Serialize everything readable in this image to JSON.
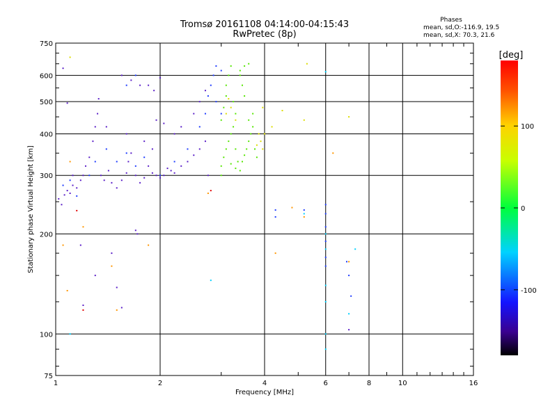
{
  "header": {
    "title": "Tromsø 20161108 04:14:00-04:15:43",
    "subtitle": "RwPretec (8p)"
  },
  "stats": {
    "title": "Phases",
    "line1": "mean, sd,O:-116.9, 19.5",
    "line2": "mean, sd,X:  70.3, 21.6"
  },
  "colorbar": {
    "label": "[deg]",
    "range": [
      -180,
      180
    ],
    "ticks": [
      "100",
      "0",
      "-100"
    ],
    "tick_values": [
      100,
      0,
      -100
    ]
  },
  "chart_data": {
    "type": "scatter",
    "xlabel": "Frequency [MHz]",
    "ylabel": "Stationary phase Virtual Height [km]",
    "xscale": "log2",
    "yscale": "log",
    "xlim": [
      1,
      16
    ],
    "ylim": [
      75,
      750
    ],
    "xticks": [
      1,
      2,
      4,
      6,
      8,
      10,
      16
    ],
    "xtick_labels": [
      "1",
      "2",
      "4",
      "6",
      "8",
      "10",
      "16"
    ],
    "yticks": [
      75,
      100,
      200,
      300,
      400,
      500,
      600,
      750
    ],
    "ytick_labels": [
      "75",
      "100",
      "200",
      "300",
      "400",
      "500",
      "600",
      "750"
    ],
    "grid": true,
    "series": [
      {
        "color": "#5a1ec8",
        "points": [
          [
            1.02,
            255
          ],
          [
            1.04,
            245
          ],
          [
            1.06,
            262
          ],
          [
            1.08,
            270
          ],
          [
            1.1,
            265
          ],
          [
            1.12,
            280
          ],
          [
            1.15,
            275
          ],
          [
            1.18,
            290
          ],
          [
            1.2,
            300
          ],
          [
            1.22,
            320
          ],
          [
            1.25,
            340
          ],
          [
            1.28,
            380
          ],
          [
            1.3,
            420
          ],
          [
            1.32,
            460
          ],
          [
            1.33,
            510
          ],
          [
            1.35,
            300
          ],
          [
            1.38,
            290
          ],
          [
            1.42,
            310
          ],
          [
            1.45,
            285
          ],
          [
            1.5,
            275
          ],
          [
            1.55,
            290
          ],
          [
            1.6,
            305
          ],
          [
            1.62,
            330
          ],
          [
            1.65,
            350
          ],
          [
            1.7,
            300
          ],
          [
            1.75,
            285
          ],
          [
            1.8,
            295
          ],
          [
            1.85,
            320
          ],
          [
            1.9,
            305
          ],
          [
            1.95,
            300
          ],
          [
            2.0,
            295
          ],
          [
            2.05,
            300
          ],
          [
            2.1,
            315
          ],
          [
            2.15,
            310
          ],
          [
            2.2,
            305
          ],
          [
            2.3,
            320
          ],
          [
            2.4,
            330
          ],
          [
            2.5,
            345
          ],
          [
            2.6,
            360
          ],
          [
            2.7,
            380
          ],
          [
            1.05,
            630
          ],
          [
            1.08,
            495
          ],
          [
            1.55,
            600
          ],
          [
            1.65,
            580
          ],
          [
            1.75,
            560
          ],
          [
            1.85,
            560
          ],
          [
            1.92,
            540
          ],
          [
            1.95,
            440
          ],
          [
            2.0,
            590
          ],
          [
            2.05,
            430
          ],
          [
            1.7,
            205
          ],
          [
            1.72,
            200
          ],
          [
            1.18,
            185
          ],
          [
            1.45,
            175
          ],
          [
            1.3,
            150
          ],
          [
            1.5,
            138
          ],
          [
            1.55,
            120
          ],
          [
            1.2,
            122
          ],
          [
            7.0,
            103
          ],
          [
            1.4,
            420
          ],
          [
            1.6,
            400
          ],
          [
            1.8,
            380
          ],
          [
            1.9,
            360
          ],
          [
            2.2,
            400
          ],
          [
            2.3,
            420
          ],
          [
            2.5,
            460
          ],
          [
            2.6,
            500
          ],
          [
            2.7,
            540
          ],
          [
            2.75,
            300
          ],
          [
            1.12,
            300
          ]
        ]
      },
      {
        "color": "#1e3cff",
        "points": [
          [
            1.05,
            280
          ],
          [
            1.1,
            290
          ],
          [
            1.15,
            260
          ],
          [
            1.25,
            300
          ],
          [
            1.3,
            330
          ],
          [
            1.4,
            360
          ],
          [
            1.5,
            330
          ],
          [
            1.6,
            350
          ],
          [
            1.7,
            320
          ],
          [
            1.8,
            340
          ],
          [
            2.0,
            300
          ],
          [
            2.2,
            330
          ],
          [
            2.4,
            360
          ],
          [
            2.6,
            420
          ],
          [
            2.7,
            460
          ],
          [
            2.75,
            520
          ],
          [
            2.8,
            560
          ],
          [
            2.85,
            600
          ],
          [
            2.9,
            640
          ],
          [
            3.0,
            620
          ],
          [
            4.3,
            236
          ],
          [
            4.3,
            225
          ],
          [
            5.2,
            236
          ],
          [
            6.0,
            245
          ],
          [
            6.0,
            230
          ],
          [
            6.0,
            210
          ],
          [
            6.0,
            190
          ],
          [
            6.0,
            170
          ],
          [
            6.0,
            160
          ],
          [
            7.0,
            150
          ],
          [
            7.1,
            130
          ],
          [
            6.9,
            165
          ],
          [
            1.7,
            600
          ],
          [
            1.6,
            560
          ],
          [
            2.9,
            500
          ],
          [
            3.0,
            460
          ]
        ]
      },
      {
        "color": "#00d2ff",
        "points": [
          [
            6.0,
            615
          ],
          [
            6.0,
            200
          ],
          [
            6.0,
            180
          ],
          [
            6.0,
            125
          ],
          [
            6.0,
            100
          ],
          [
            6.0,
            90
          ],
          [
            7.0,
            115
          ],
          [
            7.3,
            180
          ],
          [
            2.8,
            145
          ],
          [
            1.1,
            100
          ],
          [
            5.2,
            230
          ],
          [
            6.0,
            140
          ]
        ]
      },
      {
        "color": "#55e600",
        "points": [
          [
            3.0,
            320
          ],
          [
            3.05,
            340
          ],
          [
            3.1,
            360
          ],
          [
            3.15,
            380
          ],
          [
            3.2,
            400
          ],
          [
            3.25,
            420
          ],
          [
            3.3,
            360
          ],
          [
            3.35,
            330
          ],
          [
            3.4,
            310
          ],
          [
            3.45,
            330
          ],
          [
            3.5,
            345
          ],
          [
            3.55,
            360
          ],
          [
            3.6,
            380
          ],
          [
            3.65,
            400
          ],
          [
            3.7,
            420
          ],
          [
            3.5,
            520
          ],
          [
            3.45,
            560
          ],
          [
            3.4,
            600
          ],
          [
            3.1,
            560
          ],
          [
            3.15,
            600
          ],
          [
            3.2,
            640
          ],
          [
            3.25,
            500
          ],
          [
            3.3,
            460
          ],
          [
            3.0,
            440
          ],
          [
            3.05,
            480
          ],
          [
            3.1,
            520
          ],
          [
            3.6,
            440
          ],
          [
            3.7,
            460
          ],
          [
            3.75,
            360
          ],
          [
            3.8,
            340
          ],
          [
            3.2,
            325
          ],
          [
            3.3,
            315
          ],
          [
            3.0,
            300
          ],
          [
            3.5,
            640
          ],
          [
            3.6,
            650
          ],
          [
            3.4,
            620
          ]
        ]
      },
      {
        "color": "#dcdc00",
        "points": [
          [
            3.1,
            460
          ],
          [
            3.2,
            480
          ],
          [
            3.3,
            440
          ],
          [
            3.9,
            380
          ],
          [
            3.95,
            360
          ],
          [
            3.85,
            400
          ],
          [
            4.2,
            420
          ],
          [
            4.5,
            470
          ],
          [
            5.3,
            650
          ],
          [
            5.2,
            440
          ],
          [
            7.0,
            450
          ],
          [
            4.0,
            400
          ],
          [
            3.95,
            480
          ],
          [
            1.1,
            680
          ],
          [
            3.15,
            510
          ],
          [
            3.8,
            370
          ]
        ]
      },
      {
        "color": "#ff9600",
        "points": [
          [
            1.08,
            135
          ],
          [
            1.1,
            330
          ],
          [
            1.2,
            210
          ],
          [
            1.45,
            160
          ],
          [
            1.5,
            118
          ],
          [
            1.85,
            185
          ],
          [
            2.75,
            265
          ],
          [
            4.3,
            175
          ],
          [
            4.8,
            240
          ],
          [
            5.2,
            225
          ],
          [
            6.3,
            350
          ],
          [
            7.0,
            165
          ],
          [
            1.05,
            185
          ]
        ]
      },
      {
        "color": "#e10000",
        "points": [
          [
            1.15,
            235
          ],
          [
            1.2,
            118
          ],
          [
            2.8,
            270
          ]
        ]
      }
    ]
  }
}
